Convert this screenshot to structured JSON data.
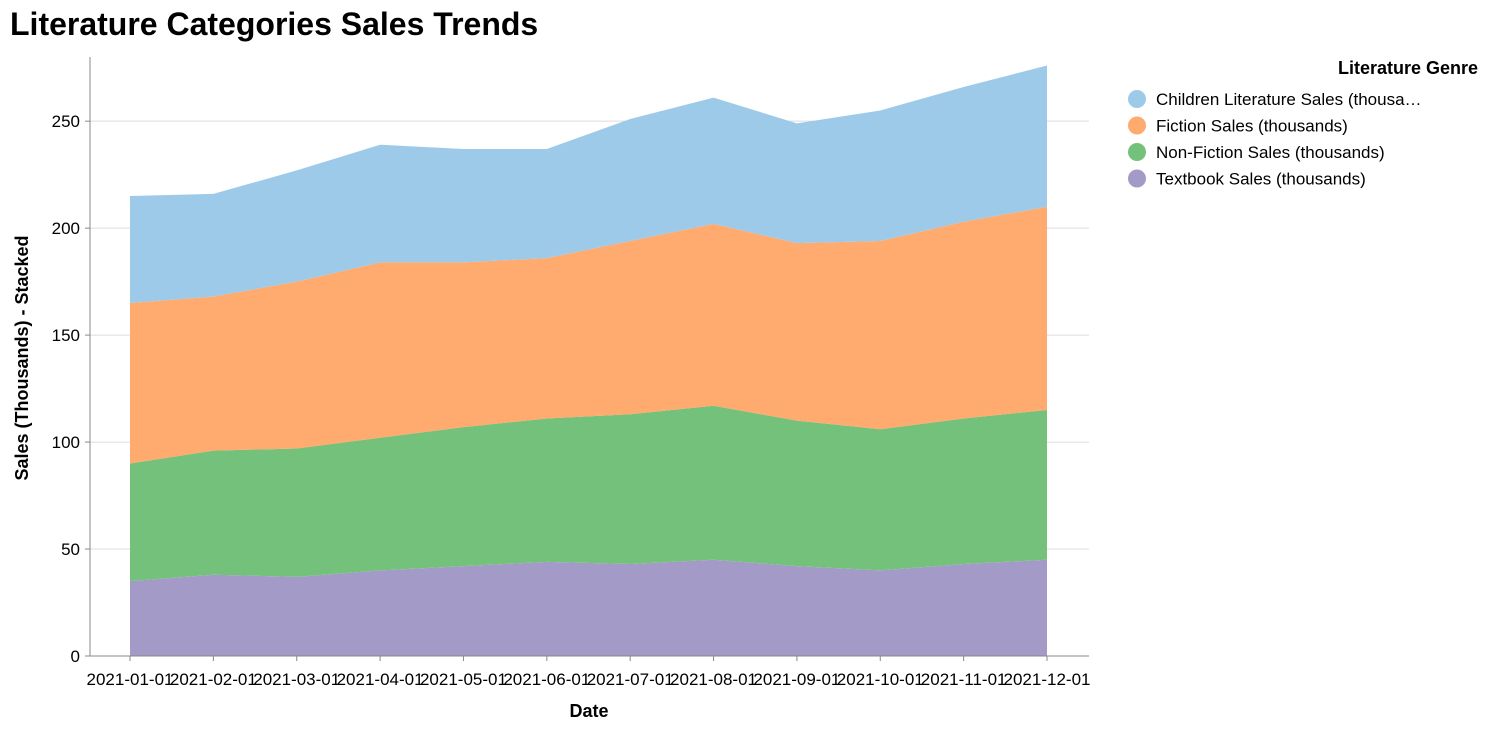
{
  "chart_data": {
    "type": "area",
    "stacked": true,
    "title": "Literature Categories Sales Trends",
    "xlabel": "Date",
    "ylabel": "Sales (Thousands) - Stacked",
    "ylim": [
      0,
      280
    ],
    "yticks": [
      0,
      50,
      100,
      150,
      200,
      250
    ],
    "grid": true,
    "legend_title": "Literature Genre",
    "legend_position": "top-right",
    "x": [
      "2021-01-01",
      "2021-02-01",
      "2021-03-01",
      "2021-04-01",
      "2021-05-01",
      "2021-06-01",
      "2021-07-01",
      "2021-08-01",
      "2021-09-01",
      "2021-10-01",
      "2021-11-01",
      "2021-12-01"
    ],
    "series": [
      {
        "name": "Children Literature Sales (thousands)",
        "legend_label": "Children Literature Sales (thousa…",
        "color": "#9ecae9",
        "values": [
          50,
          48,
          52,
          55,
          53,
          51,
          57,
          59,
          56,
          61,
          63,
          66
        ]
      },
      {
        "name": "Fiction Sales (thousands)",
        "legend_label": "Fiction Sales (thousands)",
        "color": "#ffaa6e",
        "values": [
          75,
          72,
          78,
          82,
          77,
          75,
          81,
          85,
          83,
          88,
          92,
          95
        ]
      },
      {
        "name": "Non-Fiction Sales (thousands)",
        "legend_label": "Non-Fiction Sales (thousands)",
        "color": "#74c17b",
        "values": [
          55,
          58,
          60,
          62,
          65,
          67,
          70,
          72,
          68,
          66,
          68,
          70
        ]
      },
      {
        "name": "Textbook Sales (thousands)",
        "legend_label": "Textbook Sales (thousands)",
        "color": "#a49ac8",
        "values": [
          35,
          38,
          37,
          40,
          42,
          44,
          43,
          45,
          42,
          40,
          43,
          45
        ]
      }
    ]
  }
}
